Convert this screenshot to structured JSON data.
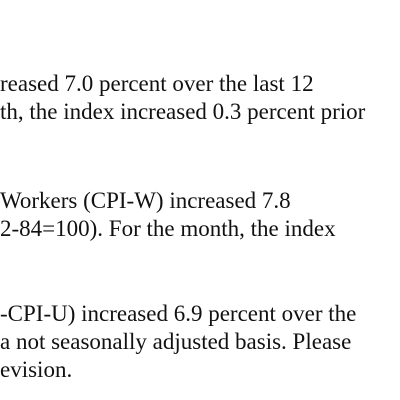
{
  "paragraphs": [
    {
      "lines": [
        "reased 7.0 percent over the last 12",
        "th, the index increased 0.3 percent prior"
      ]
    },
    {
      "lines": [
        "Workers (CPI-W) increased 7.8",
        "2-84=100). For the month, the index"
      ]
    },
    {
      "lines": [
        "-CPI-U) increased 6.9 percent over the",
        " a not seasonally adjusted basis. Please",
        "evision."
      ]
    }
  ]
}
